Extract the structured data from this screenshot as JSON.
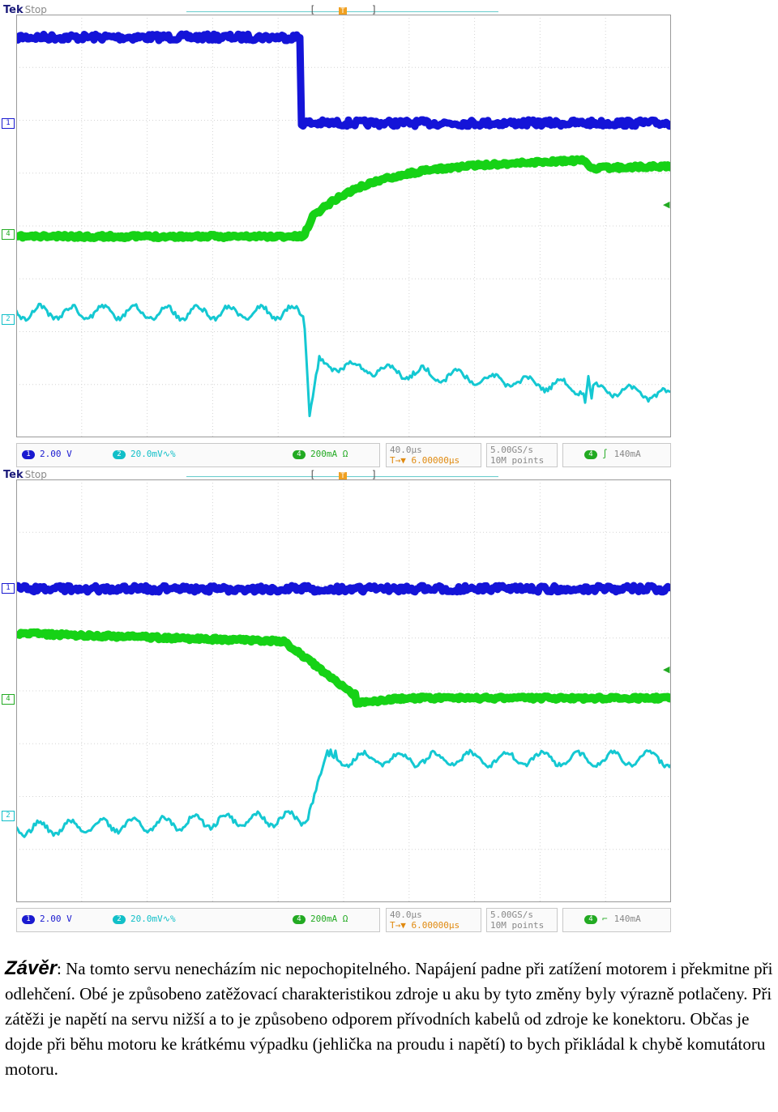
{
  "scopes": [
    {
      "brand": "Tek",
      "status": "Stop",
      "markers": {
        "ch1": "1",
        "ch4": "4",
        "ch2": "2",
        "trigger": "T"
      },
      "readouts": {
        "ch1": {
          "num": "1",
          "value": "2.00 V"
        },
        "ch2": {
          "num": "2",
          "value": "20.0mV"
        },
        "ch4": {
          "num": "4",
          "value": "200mA Ω"
        },
        "time_div": "40.0µs",
        "trigger_pos": "T→▼ 6.00000µs",
        "sample_rate": "5.00GS/s",
        "record_length": "10M points",
        "trigger_channel": "4",
        "trigger_slope": "∫",
        "trigger_level": "140mA"
      }
    },
    {
      "brand": "Tek",
      "status": "Stop",
      "markers": {
        "ch1": "1",
        "ch4": "4",
        "ch2": "2",
        "trigger": "T"
      },
      "readouts": {
        "ch1": {
          "num": "1",
          "value": "2.00 V"
        },
        "ch2": {
          "num": "2",
          "value": "20.0mV"
        },
        "ch4": {
          "num": "4",
          "value": "200mA Ω"
        },
        "time_div": "40.0µs",
        "trigger_pos": "T→▼ 6.00000µs",
        "sample_rate": "5.00GS/s",
        "record_length": "10M points",
        "trigger_channel": "4",
        "trigger_slope": "⌐",
        "trigger_level": "140mA"
      }
    }
  ],
  "traces": {
    "colors": {
      "ch1": "#1414d8",
      "ch2": "#14c8d2",
      "ch4": "#16d216"
    }
  },
  "conclusion": {
    "heading": "Závěr",
    "text": ": Na tomto servu nenecházím nic nepochopitelného. Napájení padne při zatížení motorem i překmitne při odlehčení. Obé je způsobeno zatěžovací charakteristikou zdroje u aku by tyto změny byly výrazně potlačeny. Při zátěži je napětí na servu nižší a to je způsobeno odporem přívodních kabelů od zdroje ke konektoru. Občas je dojde při běhu motoru ke krátkému výpadku (jehlička na proudu i napětí) to bych přikládal k chybě komutátoru motoru."
  }
}
